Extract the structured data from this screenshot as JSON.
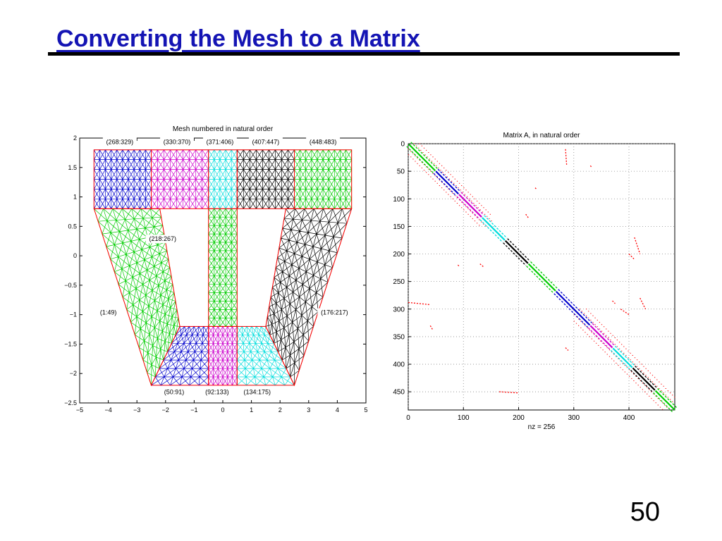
{
  "slide": {
    "title": "Converting the Mesh to a Matrix",
    "page_number": "50"
  },
  "chart_data": [
    {
      "type": "mesh",
      "title": "Mesh numbered in natural order",
      "xlabel": "",
      "ylabel": "",
      "xlim": [
        -5,
        5
      ],
      "ylim": [
        -2.5,
        2
      ],
      "xticks": [
        -5,
        -4,
        -3,
        -2,
        -1,
        0,
        1,
        2,
        3,
        4,
        5
      ],
      "yticks": [
        2,
        1.5,
        1,
        0.5,
        0,
        -0.5,
        -1,
        -1.5,
        -2,
        -2.5
      ],
      "xtick_labels": [
        "−5",
        "−4",
        "−3",
        "−2",
        "−1",
        "0",
        "1",
        "2",
        "3",
        "4",
        "5"
      ],
      "ytick_labels": [
        "2",
        "1.5",
        "1",
        "0.5",
        "0",
        "−0.5",
        "−1",
        "−1.5",
        "−2",
        "−2.5"
      ],
      "grid": false,
      "regions": [
        {
          "label": "(1:49)",
          "color": "#00cc00",
          "quad": [
            [
              -4.5,
              0.8
            ],
            [
              -2.2,
              0.8
            ],
            [
              -1.5,
              -1.2
            ],
            [
              -2.5,
              -2.2
            ]
          ],
          "nu": 7,
          "nv": 14,
          "label_at": [
            -4.0,
            -1.0
          ]
        },
        {
          "label": "(50:91)",
          "color": "#0000cc",
          "quad": [
            [
              -1.5,
              -1.2
            ],
            [
              -0.5,
              -1.2
            ],
            [
              -0.5,
              -2.2
            ],
            [
              -2.5,
              -2.2
            ]
          ],
          "nu": 6,
          "nv": 7,
          "label_at": [
            -1.7,
            -2.35
          ]
        },
        {
          "label": "(92:133)",
          "color": "#cc00cc",
          "quad": [
            [
              -0.5,
              -1.2
            ],
            [
              0.5,
              -1.2
            ],
            [
              0.5,
              -2.2
            ],
            [
              -0.5,
              -2.2
            ]
          ],
          "nu": 6,
          "nv": 7,
          "label_at": [
            -0.2,
            -2.35
          ]
        },
        {
          "label": "(134:175)",
          "color": "#00dddd",
          "quad": [
            [
              0.5,
              -1.2
            ],
            [
              1.5,
              -1.2
            ],
            [
              2.5,
              -2.2
            ],
            [
              0.5,
              -2.2
            ]
          ],
          "nu": 6,
          "nv": 7,
          "label_at": [
            1.2,
            -2.35
          ]
        },
        {
          "label": "(176:217)",
          "color": "#000000",
          "quad": [
            [
              2.2,
              0.8
            ],
            [
              4.5,
              0.8
            ],
            [
              2.5,
              -2.2
            ],
            [
              1.5,
              -1.2
            ]
          ],
          "nu": 7,
          "nv": 12,
          "label_at": [
            3.9,
            -1.0
          ]
        },
        {
          "label": "(218:267)",
          "color": "#00cc00",
          "quad": [
            [
              -0.5,
              0.8
            ],
            [
              0.5,
              0.8
            ],
            [
              0.5,
              -1.2
            ],
            [
              -0.5,
              -1.2
            ]
          ],
          "nu": 5,
          "nv": 14,
          "label_at": [
            -2.1,
            0.25
          ]
        },
        {
          "label": "(268:329)",
          "color": "#0000cc",
          "quad": [
            [
              -4.5,
              1.8
            ],
            [
              -2.5,
              1.8
            ],
            [
              -2.5,
              0.8
            ],
            [
              -4.5,
              0.8
            ]
          ],
          "nu": 10,
          "nv": 6,
          "label_at": [
            -3.6,
            1.9
          ]
        },
        {
          "label": "(330:370)",
          "color": "#cc00cc",
          "quad": [
            [
              -2.5,
              1.8
            ],
            [
              -0.5,
              1.8
            ],
            [
              -0.5,
              0.8
            ],
            [
              -2.5,
              0.8
            ]
          ],
          "nu": 9,
          "nv": 6,
          "label_at": [
            -1.6,
            1.9
          ]
        },
        {
          "label": "(371:406)",
          "color": "#00dddd",
          "quad": [
            [
              -0.5,
              1.8
            ],
            [
              0.5,
              1.8
            ],
            [
              0.5,
              0.8
            ],
            [
              -0.5,
              0.8
            ]
          ],
          "nu": 5,
          "nv": 6,
          "label_at": [
            -0.1,
            1.9
          ]
        },
        {
          "label": "(407:447)",
          "color": "#000000",
          "quad": [
            [
              0.5,
              1.8
            ],
            [
              2.5,
              1.8
            ],
            [
              2.5,
              0.8
            ],
            [
              0.5,
              0.8
            ]
          ],
          "nu": 9,
          "nv": 6,
          "label_at": [
            1.5,
            1.9
          ]
        },
        {
          "label": "(448:483)",
          "color": "#00cc00",
          "quad": [
            [
              2.5,
              1.8
            ],
            [
              4.5,
              1.8
            ],
            [
              4.5,
              0.8
            ],
            [
              2.5,
              0.8
            ]
          ],
          "nu": 10,
          "nv": 6,
          "label_at": [
            3.5,
            1.9
          ]
        }
      ],
      "interface_color": "#ff0000"
    },
    {
      "type": "spy",
      "title": "Matrix A, in natural order",
      "xlabel": "nz = 256",
      "ylabel": "",
      "xlim": [
        0,
        483
      ],
      "ylim": [
        483,
        0
      ],
      "xticks": [
        0,
        100,
        200,
        300,
        400
      ],
      "yticks": [
        0,
        50,
        100,
        150,
        200,
        250,
        300,
        350,
        400,
        450
      ],
      "xtick_labels": [
        "0",
        "100",
        "200",
        "300",
        "400"
      ],
      "ytick_labels": [
        "0",
        "50",
        "100",
        "150",
        "200",
        "250",
        "300",
        "350",
        "400",
        "450"
      ],
      "grid": true,
      "diagonal_blocks": [
        {
          "range": [
            1,
            49
          ],
          "color": "#00cc00"
        },
        {
          "range": [
            50,
            91
          ],
          "color": "#0000cc"
        },
        {
          "range": [
            92,
            133
          ],
          "color": "#cc00cc"
        },
        {
          "range": [
            134,
            175
          ],
          "color": "#00dddd"
        },
        {
          "range": [
            176,
            217
          ],
          "color": "#000000"
        },
        {
          "range": [
            218,
            267
          ],
          "color": "#00cc00"
        },
        {
          "range": [
            268,
            329
          ],
          "color": "#0000cc"
        },
        {
          "range": [
            330,
            370
          ],
          "color": "#cc00cc"
        },
        {
          "range": [
            371,
            406
          ],
          "color": "#00dddd"
        },
        {
          "range": [
            407,
            447
          ],
          "color": "#000000"
        },
        {
          "range": [
            448,
            483
          ],
          "color": "#00cc00"
        }
      ],
      "offdiagonal_color": "#ff0000",
      "offdiagonal_bands": [
        {
          "rows": [
            0,
            140
          ],
          "offset": 10
        },
        {
          "rows": [
            0,
            130
          ],
          "offset": 20
        },
        {
          "rows": [
            300,
            470
          ],
          "offset": 10
        },
        {
          "rows": [
            300,
            460
          ],
          "offset": 22
        }
      ],
      "offdiagonal_segments": [
        {
          "x": [
            0,
            40
          ],
          "y": [
            288,
            292
          ]
        },
        {
          "x": [
            40,
            44
          ],
          "y": [
            330,
            337
          ]
        },
        {
          "x": [
            285,
            287
          ],
          "y": [
            10,
            38
          ]
        },
        {
          "x": [
            410,
            420
          ],
          "y": [
            170,
            200
          ]
        },
        {
          "x": [
            213,
            218
          ],
          "y": [
            128,
            135
          ]
        },
        {
          "x": [
            130,
            136
          ],
          "y": [
            218,
            223
          ]
        },
        {
          "x": [
            285,
            290
          ],
          "y": [
            370,
            375
          ]
        },
        {
          "x": [
            370,
            375
          ],
          "y": [
            285,
            290
          ]
        },
        {
          "x": [
            165,
            200
          ],
          "y": [
            450,
            452
          ]
        },
        {
          "x": [
            230,
            232
          ],
          "y": [
            80,
            82
          ]
        },
        {
          "x": [
            330,
            332
          ],
          "y": [
            40,
            42
          ]
        },
        {
          "x": [
            90,
            92
          ],
          "y": [
            220,
            222
          ]
        },
        {
          "x": [
            400,
            410
          ],
          "y": [
            200,
            210
          ]
        },
        {
          "x": [
            420,
            430
          ],
          "y": [
            280,
            300
          ]
        },
        {
          "x": [
            385,
            400
          ],
          "y": [
            300,
            310
          ]
        }
      ]
    }
  ]
}
